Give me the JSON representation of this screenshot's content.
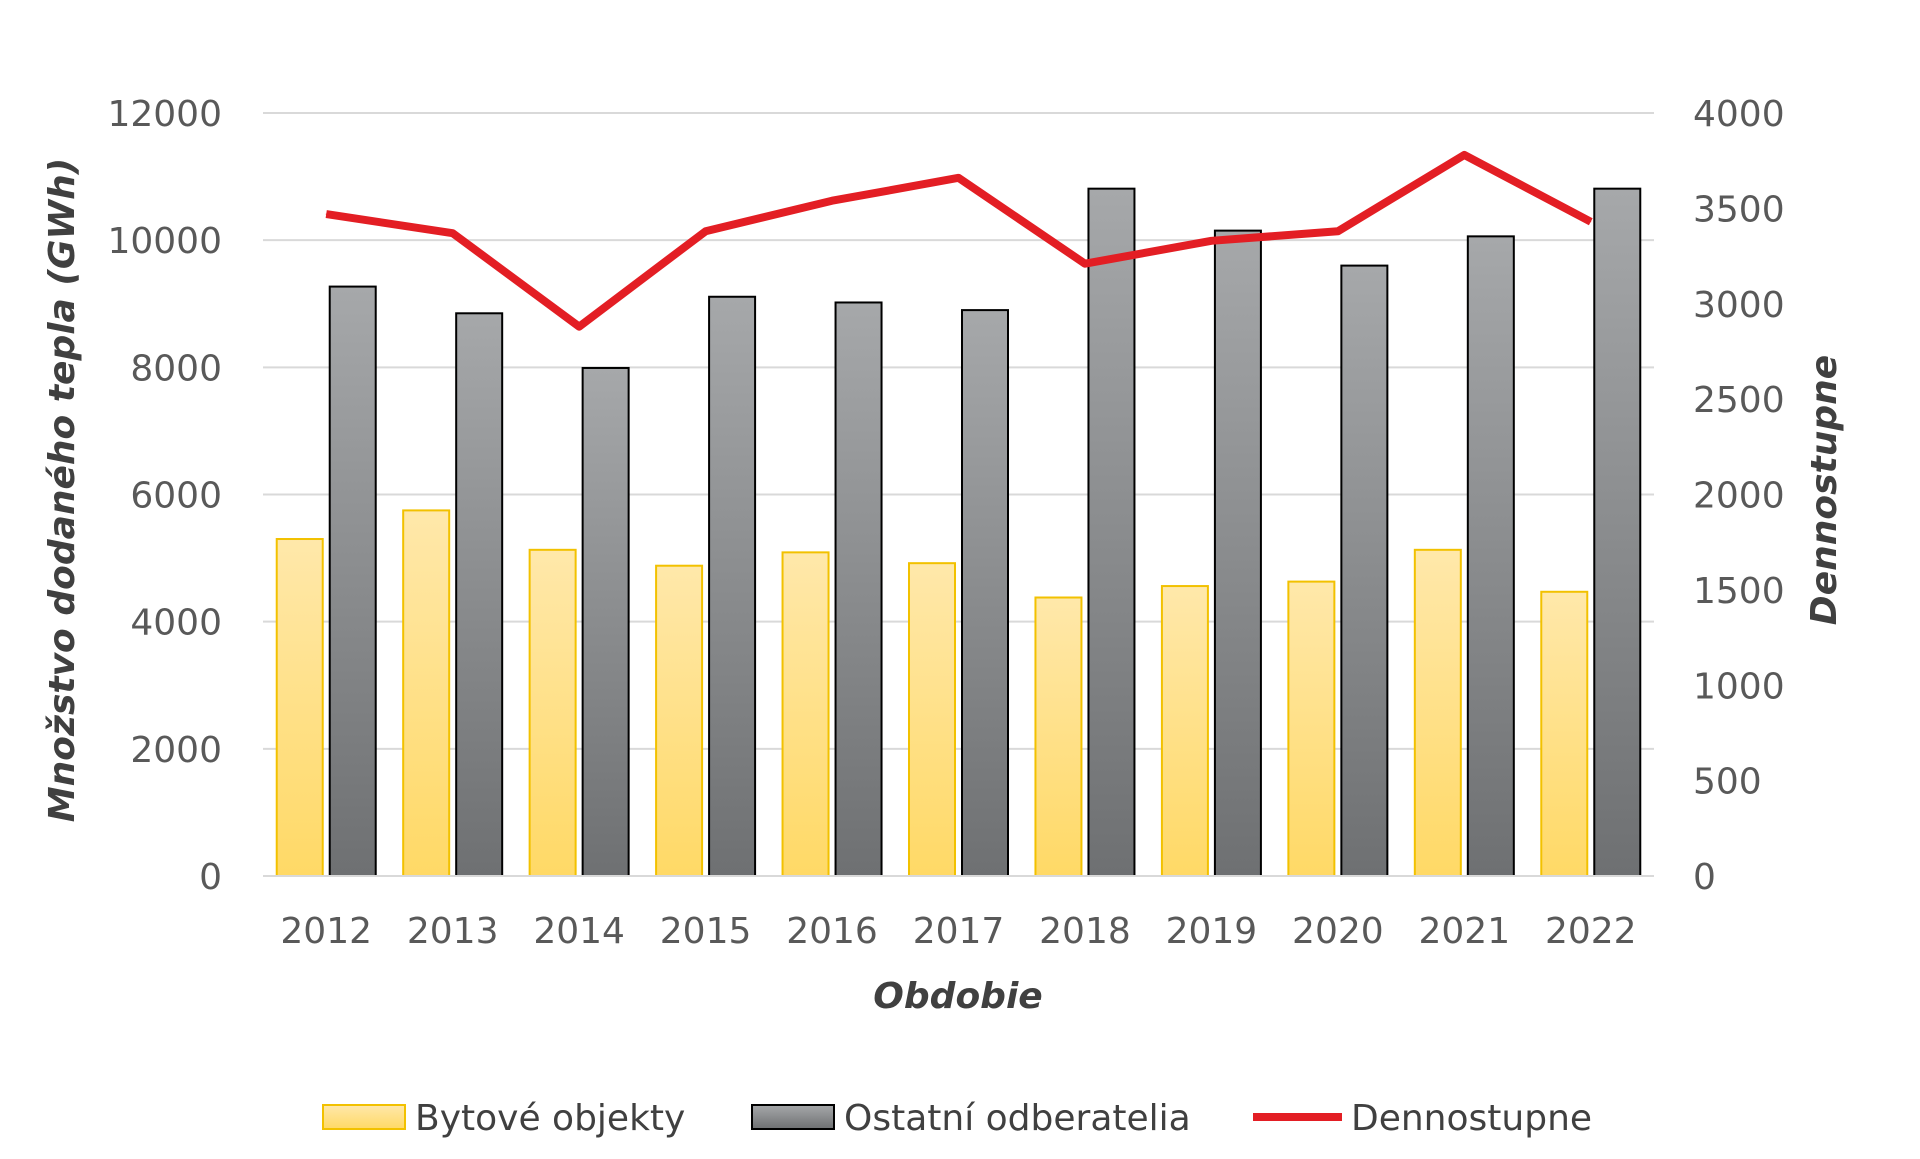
{
  "chart_data": {
    "type": "bar",
    "categories": [
      "2012",
      "2013",
      "2014",
      "2015",
      "2016",
      "2017",
      "2018",
      "2019",
      "2020",
      "2021",
      "2022"
    ],
    "series": [
      {
        "name": "Bytové objekty",
        "kind": "bar",
        "axis": "left",
        "color": "#FFD966",
        "values": [
          5300,
          5750,
          5130,
          4880,
          5090,
          4920,
          4380,
          4560,
          4630,
          5130,
          4470
        ]
      },
      {
        "name": "Ostatní odberatelia",
        "kind": "bar",
        "axis": "left",
        "color": "#808080",
        "values": [
          9270,
          8850,
          7990,
          9110,
          9020,
          8900,
          10810,
          10150,
          9600,
          10060,
          10810
        ]
      },
      {
        "name": "Dennostupne",
        "kind": "line",
        "axis": "right",
        "color": "#E31E24",
        "values": [
          3470,
          3370,
          2880,
          3380,
          3540,
          3660,
          3210,
          3330,
          3380,
          3780,
          3430
        ]
      }
    ],
    "xlabel": "Obdobie",
    "ylabel": "Množstvo dodaného tepla (GWh)",
    "y2label": "Dennostupne",
    "ylim": [
      0,
      12000
    ],
    "y2lim": [
      0,
      4000
    ],
    "yticks": [
      "0",
      "2000",
      "4000",
      "6000",
      "8000",
      "10000",
      "12000"
    ],
    "y2ticks": [
      "0",
      "500",
      "1000",
      "1500",
      "2000",
      "2500",
      "3000",
      "3500",
      "4000"
    ],
    "grid": true,
    "legend_position": "bottom"
  }
}
